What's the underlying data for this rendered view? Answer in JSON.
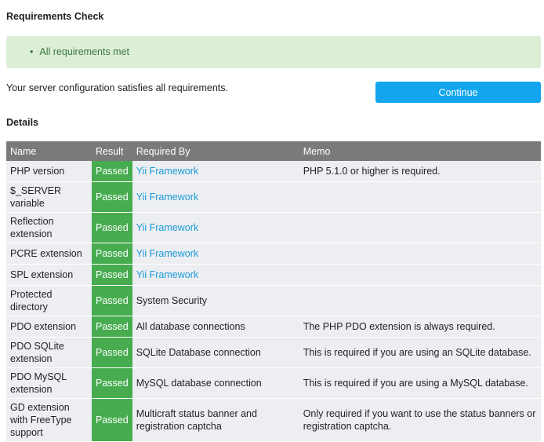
{
  "title": "Requirements Check",
  "alert": {
    "items": [
      "All requirements met"
    ]
  },
  "message": "Your server configuration satisfies all requirements.",
  "continue_label": "Continue",
  "details_title": "Details",
  "table": {
    "headers": [
      "Name",
      "Result",
      "Required By",
      "Memo"
    ],
    "rows": [
      {
        "name": "PHP version",
        "result": "Passed",
        "required_by": "Yii Framework",
        "link": true,
        "memo": "PHP 5.1.0 or higher is required."
      },
      {
        "name": "$_SERVER variable",
        "result": "Passed",
        "required_by": "Yii Framework",
        "link": true,
        "memo": ""
      },
      {
        "name": "Reflection extension",
        "result": "Passed",
        "required_by": "Yii Framework",
        "link": true,
        "memo": ""
      },
      {
        "name": "PCRE extension",
        "result": "Passed",
        "required_by": "Yii Framework",
        "link": true,
        "memo": ""
      },
      {
        "name": "SPL extension",
        "result": "Passed",
        "required_by": "Yii Framework",
        "link": true,
        "memo": ""
      },
      {
        "name": "Protected directory",
        "result": "Passed",
        "required_by": "System Security",
        "link": false,
        "memo": ""
      },
      {
        "name": "PDO extension",
        "result": "Passed",
        "required_by": "All database connections",
        "link": false,
        "memo": "The PHP PDO extension is always required."
      },
      {
        "name": "PDO SQLite extension",
        "result": "Passed",
        "required_by": "SQLite Database connection",
        "link": false,
        "memo": "This is required if you are using an SQLite database."
      },
      {
        "name": "PDO MySQL extension",
        "result": "Passed",
        "required_by": "MySQL database connection",
        "link": false,
        "memo": "This is required if you are using a MySQL database."
      },
      {
        "name": "GD extension with FreeType support",
        "result": "Passed",
        "required_by": "Multicraft status banner and registration captcha",
        "link": false,
        "memo": "Only required if you want to use the status banners or registration captcha."
      }
    ]
  }
}
